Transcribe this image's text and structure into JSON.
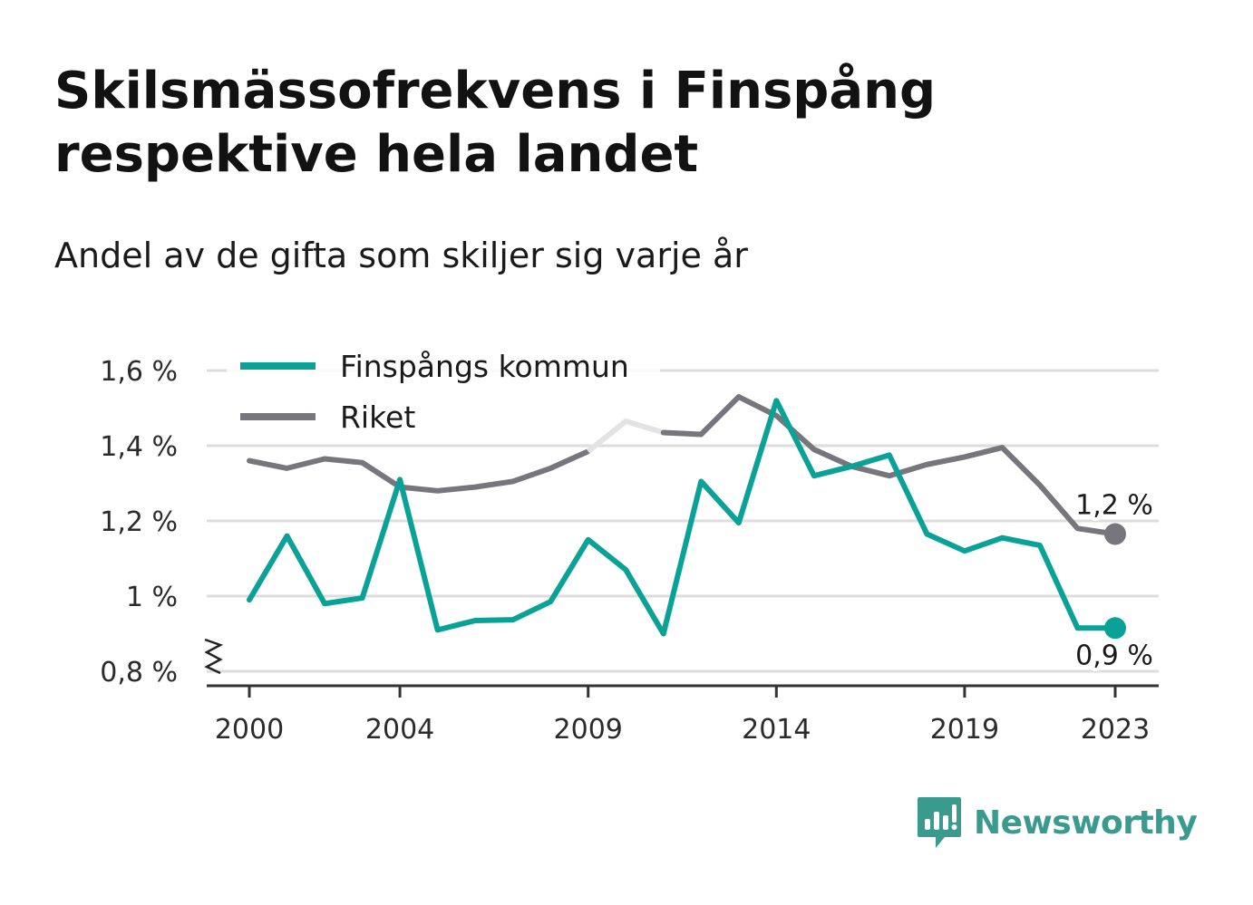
{
  "title": "Skilsmässofrekvens i Finspång respektive hela landet",
  "subtitle": "Andel av de gifta som skiljer sig varje år",
  "brand": {
    "name": "Newsworthy",
    "icon": "newsworthy-logo-icon"
  },
  "colors": {
    "finspang": "#0aa196",
    "riket": "#77767c",
    "riket_faded": "#e3e3e3",
    "grid": "#dddddd",
    "axis": "#333333"
  },
  "chart_data": {
    "type": "line",
    "title": "Skilsmässofrekvens i Finspång respektive hela landet",
    "subtitle": "Andel av de gifta som skiljer sig varje år",
    "x": [
      2000,
      2001,
      2002,
      2003,
      2004,
      2005,
      2006,
      2007,
      2008,
      2009,
      2010,
      2011,
      2012,
      2013,
      2014,
      2015,
      2016,
      2017,
      2018,
      2019,
      2020,
      2021,
      2022,
      2023
    ],
    "x_ticks": [
      2000,
      2004,
      2009,
      2014,
      2019,
      2023
    ],
    "x_tick_labels": [
      "2000",
      "2004",
      "2009",
      "2014",
      "2019",
      "2023"
    ],
    "y_ticks": [
      0.8,
      1.0,
      1.2,
      1.4,
      1.6
    ],
    "y_tick_labels": [
      "0,8 %",
      "1 %",
      "1,2 %",
      "1,4 %",
      "1,6 %"
    ],
    "ylim": [
      0.77,
      1.62
    ],
    "y_axis_broken": true,
    "grid": true,
    "legend_position": "top-left",
    "series": [
      {
        "name": "Finspångs kommun",
        "color": "#0aa196",
        "values": [
          0.99,
          1.16,
          0.98,
          0.995,
          1.31,
          0.91,
          0.935,
          0.937,
          0.985,
          1.15,
          1.07,
          0.9,
          1.305,
          1.195,
          1.52,
          1.32,
          1.345,
          1.375,
          1.165,
          1.12,
          1.155,
          1.135,
          0.915,
          0.915
        ],
        "end_label": "0,9 %"
      },
      {
        "name": "Riket",
        "color": "#77767c",
        "values": [
          1.36,
          1.34,
          1.365,
          1.355,
          1.29,
          1.28,
          1.29,
          1.305,
          1.34,
          1.385,
          1.465,
          1.435,
          1.43,
          1.53,
          1.48,
          1.39,
          1.345,
          1.32,
          1.35,
          1.37,
          1.395,
          1.295,
          1.18,
          1.165
        ],
        "end_label": "1,2 %"
      }
    ]
  }
}
